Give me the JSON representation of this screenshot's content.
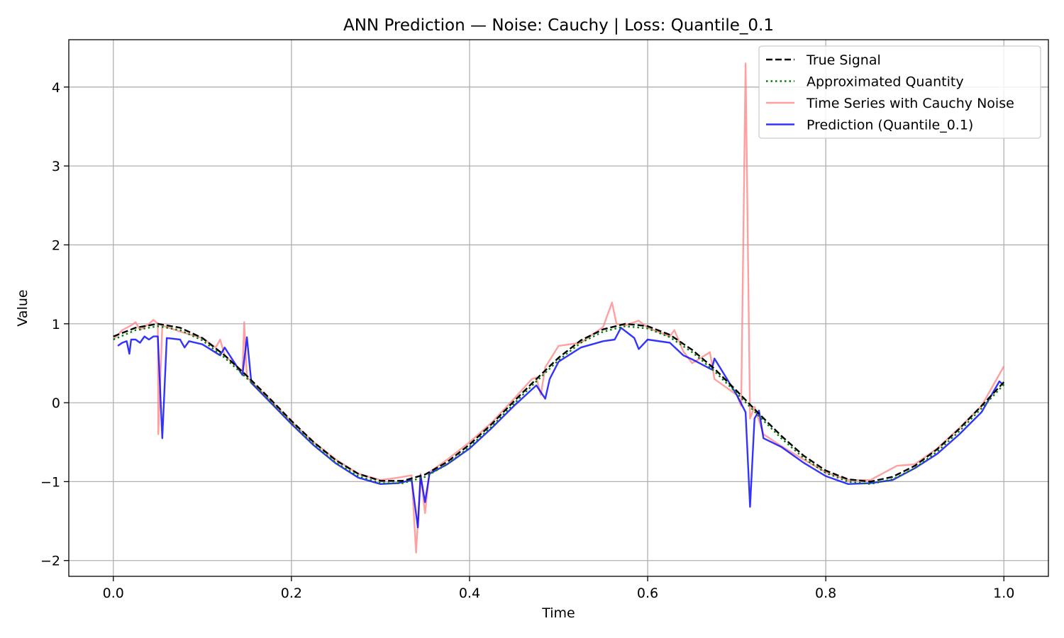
{
  "chart_data": {
    "type": "line",
    "title": "ANN Prediction — Noise: Cauchy | Loss: Quantile_0.1",
    "xlabel": "Time",
    "ylabel": "Value",
    "xlim": [
      -0.05,
      1.05
    ],
    "ylim": [
      -2.2,
      4.6
    ],
    "xticks": [
      0.0,
      0.2,
      0.4,
      0.6,
      0.8,
      1.0
    ],
    "xtick_labels": [
      "0.0",
      "0.2",
      "0.4",
      "0.6",
      "0.8",
      "1.0"
    ],
    "yticks": [
      -2,
      -1,
      0,
      1,
      2,
      3,
      4
    ],
    "ytick_labels": [
      "−2",
      "−1",
      "0",
      "1",
      "2",
      "3",
      "4"
    ],
    "grid": true,
    "legend_position": "top-right",
    "series": [
      {
        "name": "True Signal",
        "color": "#000000",
        "style": "dashed",
        "x": [
          0.0,
          0.025,
          0.05,
          0.075,
          0.1,
          0.125,
          0.15,
          0.175,
          0.2,
          0.225,
          0.25,
          0.275,
          0.3,
          0.325,
          0.35,
          0.375,
          0.4,
          0.425,
          0.45,
          0.475,
          0.5,
          0.525,
          0.55,
          0.575,
          0.6,
          0.625,
          0.65,
          0.675,
          0.7,
          0.725,
          0.75,
          0.775,
          0.8,
          0.825,
          0.85,
          0.875,
          0.9,
          0.925,
          0.95,
          0.975,
          1.0
        ],
        "y": [
          0.84,
          0.95,
          1.0,
          0.95,
          0.82,
          0.6,
          0.34,
          0.06,
          -0.23,
          -0.5,
          -0.73,
          -0.9,
          -0.99,
          -0.99,
          -0.91,
          -0.75,
          -0.53,
          -0.27,
          0.02,
          0.3,
          0.57,
          0.79,
          0.93,
          1.0,
          0.97,
          0.86,
          0.67,
          0.43,
          0.15,
          -0.14,
          -0.42,
          -0.67,
          -0.86,
          -0.97,
          -1.0,
          -0.94,
          -0.8,
          -0.59,
          -0.33,
          -0.04,
          0.26
        ]
      },
      {
        "name": "Approximated Quantity",
        "color": "#008000",
        "style": "dotted",
        "x": [
          0.0,
          0.025,
          0.05,
          0.075,
          0.1,
          0.125,
          0.15,
          0.175,
          0.2,
          0.225,
          0.25,
          0.275,
          0.3,
          0.325,
          0.35,
          0.375,
          0.4,
          0.425,
          0.45,
          0.475,
          0.5,
          0.525,
          0.55,
          0.575,
          0.6,
          0.625,
          0.65,
          0.675,
          0.7,
          0.725,
          0.75,
          0.775,
          0.8,
          0.825,
          0.85,
          0.875,
          0.9,
          0.925,
          0.95,
          0.975,
          1.0
        ],
        "y": [
          0.8,
          0.92,
          0.97,
          0.92,
          0.79,
          0.57,
          0.31,
          0.03,
          -0.26,
          -0.53,
          -0.76,
          -0.93,
          -1.02,
          -1.02,
          -0.94,
          -0.78,
          -0.56,
          -0.3,
          -0.01,
          0.27,
          0.54,
          0.76,
          0.9,
          0.97,
          0.94,
          0.83,
          0.64,
          0.4,
          0.12,
          -0.17,
          -0.45,
          -0.7,
          -0.89,
          -1.0,
          -1.03,
          -0.97,
          -0.83,
          -0.62,
          -0.36,
          -0.07,
          0.23
        ]
      },
      {
        "name": "Time Series with Cauchy Noise",
        "color": "#ff8080",
        "style": "solid",
        "x": [
          0.0,
          0.01,
          0.02,
          0.025,
          0.03,
          0.04,
          0.045,
          0.05,
          0.0505,
          0.055,
          0.06,
          0.075,
          0.1,
          0.115,
          0.12,
          0.125,
          0.145,
          0.147,
          0.15,
          0.175,
          0.2,
          0.225,
          0.25,
          0.275,
          0.3,
          0.32,
          0.335,
          0.34,
          0.345,
          0.35,
          0.355,
          0.375,
          0.4,
          0.425,
          0.45,
          0.47,
          0.475,
          0.48,
          0.485,
          0.5,
          0.525,
          0.55,
          0.56,
          0.565,
          0.575,
          0.59,
          0.6,
          0.625,
          0.63,
          0.64,
          0.65,
          0.67,
          0.675,
          0.7,
          0.705,
          0.71,
          0.715,
          0.72,
          0.73,
          0.75,
          0.775,
          0.8,
          0.825,
          0.85,
          0.88,
          0.9,
          0.925,
          0.95,
          0.975,
          1.0
        ],
        "y": [
          0.8,
          0.92,
          0.98,
          1.02,
          0.92,
          1.0,
          1.05,
          1.0,
          -0.4,
          0.98,
          0.96,
          0.9,
          0.82,
          0.7,
          0.8,
          0.6,
          0.4,
          1.02,
          0.32,
          0.05,
          -0.24,
          -0.5,
          -0.72,
          -0.9,
          -0.98,
          -0.95,
          -0.92,
          -1.9,
          -0.9,
          -1.4,
          -0.88,
          -0.72,
          -0.5,
          -0.25,
          0.05,
          0.3,
          0.32,
          0.1,
          0.45,
          0.72,
          0.76,
          0.96,
          1.27,
          1.0,
          0.98,
          1.04,
          0.95,
          0.84,
          0.92,
          0.65,
          0.5,
          0.64,
          0.3,
          0.1,
          -0.04,
          4.3,
          -0.2,
          -0.05,
          -0.4,
          -0.55,
          -0.72,
          -0.88,
          -0.98,
          -0.98,
          -0.8,
          -0.78,
          -0.58,
          -0.32,
          -0.04,
          0.46
        ]
      },
      {
        "name": "Prediction (Quantile_0.1)",
        "color": "#0000ff",
        "style": "solid",
        "x": [
          0.005,
          0.01,
          0.015,
          0.018,
          0.02,
          0.025,
          0.03,
          0.035,
          0.04,
          0.045,
          0.05,
          0.052,
          0.055,
          0.06,
          0.075,
          0.08,
          0.085,
          0.1,
          0.12,
          0.125,
          0.145,
          0.15,
          0.155,
          0.175,
          0.2,
          0.225,
          0.25,
          0.275,
          0.3,
          0.32,
          0.335,
          0.342,
          0.345,
          0.35,
          0.355,
          0.375,
          0.4,
          0.425,
          0.45,
          0.475,
          0.485,
          0.49,
          0.5,
          0.525,
          0.55,
          0.563,
          0.57,
          0.585,
          0.59,
          0.6,
          0.625,
          0.64,
          0.65,
          0.672,
          0.675,
          0.7,
          0.71,
          0.715,
          0.72,
          0.725,
          0.73,
          0.75,
          0.775,
          0.8,
          0.825,
          0.85,
          0.875,
          0.9,
          0.925,
          0.95,
          0.975,
          0.995,
          1.0
        ],
        "y": [
          0.72,
          0.76,
          0.78,
          0.62,
          0.8,
          0.8,
          0.76,
          0.84,
          0.8,
          0.84,
          0.84,
          0.3,
          -0.45,
          0.82,
          0.8,
          0.7,
          0.78,
          0.74,
          0.6,
          0.7,
          0.35,
          0.83,
          0.25,
          0.02,
          -0.27,
          -0.54,
          -0.77,
          -0.95,
          -1.03,
          -1.02,
          -0.98,
          -1.58,
          -0.92,
          -1.26,
          -0.9,
          -0.78,
          -0.58,
          -0.32,
          -0.04,
          0.22,
          0.05,
          0.3,
          0.52,
          0.7,
          0.78,
          0.8,
          0.95,
          0.82,
          0.68,
          0.8,
          0.76,
          0.6,
          0.55,
          0.42,
          0.56,
          0.1,
          -0.12,
          -1.32,
          -0.2,
          -0.1,
          -0.45,
          -0.56,
          -0.76,
          -0.93,
          -1.03,
          -1.02,
          -0.98,
          -0.83,
          -0.65,
          -0.4,
          -0.12,
          0.27,
          0.22
        ]
      }
    ]
  }
}
